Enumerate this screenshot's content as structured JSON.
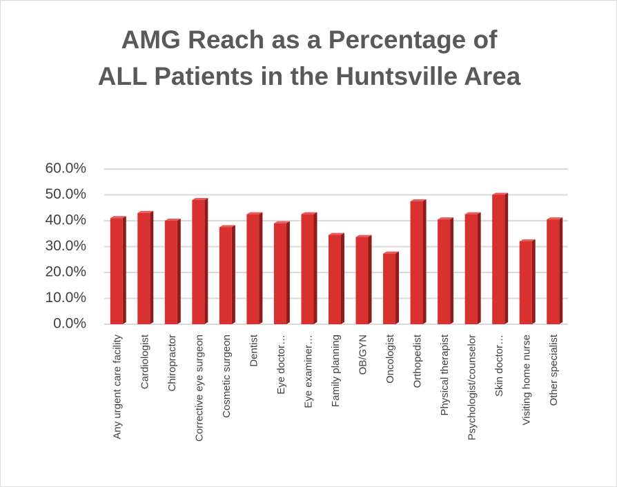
{
  "chart_data": {
    "type": "bar",
    "title": "AMG Reach as a Percentage of ALL Patients in the Huntsville Area",
    "categories": [
      "Any urgent care facility",
      "Cardiologist",
      "Chiropractor",
      "Corrective eye surgeon",
      "Cosmetic surgeon",
      "Dentist",
      "Eye doctor…",
      "Eye examiner…",
      "Family planning",
      "OB/GYN",
      "Oncologist",
      "Orthopedist",
      "Physical therapist",
      "Psychologist/counselor",
      "Skin doctor…",
      "Visiting home nurse",
      "Other specialist"
    ],
    "values": [
      41,
      43,
      40,
      48,
      37.5,
      42.5,
      39,
      42.5,
      34.5,
      33.7,
      27.3,
      47.5,
      40.5,
      42.5,
      50,
      32,
      40.5
    ],
    "color": "#d9312f",
    "ylim": [
      0,
      60
    ],
    "yticks": [
      {
        "value": 0,
        "label": "0.0%"
      },
      {
        "value": 10,
        "label": "10.0%"
      },
      {
        "value": 20,
        "label": "20.0%"
      },
      {
        "value": 30,
        "label": "30.0%"
      },
      {
        "value": 40,
        "label": "40.0%"
      },
      {
        "value": 50,
        "label": "50.0%"
      },
      {
        "value": 60,
        "label": "60.0%"
      }
    ],
    "grid": true
  }
}
